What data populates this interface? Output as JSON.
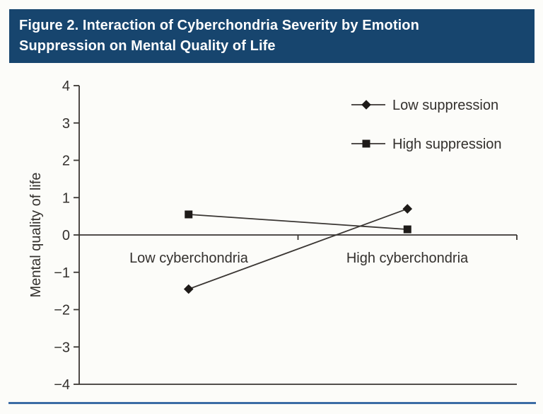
{
  "figure": {
    "title": "Figure 2. Interaction of Cyberchondria Severity by Emotion Suppression on Mental Quality of Life",
    "title_lines": [
      "Figure 2. Interaction of Cyberchondria Severity by Emotion",
      "Suppression on Mental Quality of Life"
    ]
  },
  "colors": {
    "header_bg": "#17456e",
    "header_text": "#ffffff",
    "rule_blue": "#3c6ca5",
    "axis_ink": "#3a3633",
    "marker_ink": "#1e1b19",
    "text_ink": "#33302d",
    "background": "#fcfcf9"
  },
  "chart_data": {
    "type": "line",
    "categories": [
      "Low cyberchondria",
      "High cyberchondria"
    ],
    "series": [
      {
        "name": "Low suppression",
        "marker": "diamond",
        "values": [
          -1.45,
          0.7
        ]
      },
      {
        "name": "High suppression",
        "marker": "square",
        "values": [
          0.55,
          0.15
        ]
      }
    ],
    "xlabel": "",
    "ylabel": "Mental quality of life",
    "ylim": [
      -4,
      4
    ],
    "y_ticks": [
      4,
      3,
      2,
      1,
      0,
      -1,
      -2,
      -3,
      -4
    ],
    "grid": false,
    "zero_baseline": true,
    "legend_position": "top-right"
  }
}
